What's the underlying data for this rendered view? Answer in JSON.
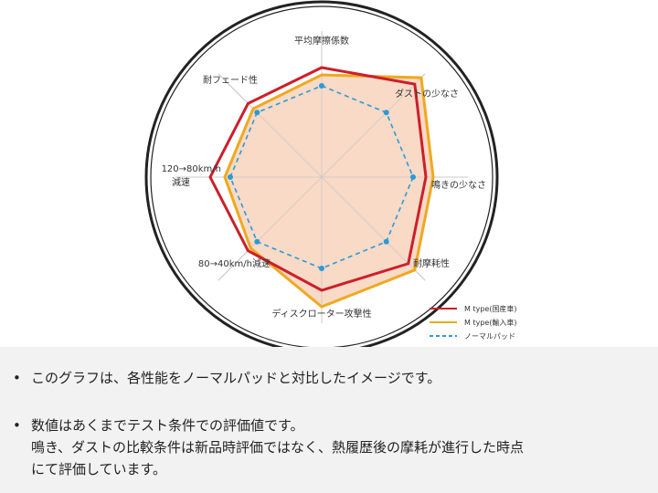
{
  "chart_data": {
    "type": "radar",
    "axes": [
      "平均摩擦係数",
      "ダストの少なさ",
      "鳴きの少なさ",
      "耐摩耗性",
      "ディスクローター攻撃性",
      "80→40km/h減速",
      "120→80km/h\n減速",
      "耐フェード性"
    ],
    "range": [
      0,
      10
    ],
    "series": [
      {
        "name": "M type(国産車)",
        "color": "#cc1f2a",
        "style": "solid",
        "values": [
          6.0,
          7.2,
          5.7,
          6.7,
          6.2,
          5.7,
          6.1,
          5.7
        ]
      },
      {
        "name": "M type(輸入車)",
        "color": "#f0a81e",
        "style": "solid",
        "values": [
          5.6,
          7.7,
          6.1,
          7.2,
          7.1,
          5.5,
          5.3,
          5.3
        ]
      },
      {
        "name": "ノーマルパッド",
        "color": "#2a9ad6",
        "style": "dashed",
        "values": [
          5.0,
          5.0,
          5.0,
          5.0,
          5.0,
          5.0,
          5.0,
          5.0
        ]
      }
    ],
    "fill_color": "#f7d3bd",
    "legend": "bottom-right"
  },
  "notes": [
    "このグラフは、各性能をノーマルパッドと対比したイメージです。",
    "数値はあくまでテスト条件での評価値です。\n鳴き、ダストの比較条件は新品時評価ではなく、熱履歴後の摩耗が進行した時点\nにて評価しています。"
  ],
  "bullet": "•"
}
